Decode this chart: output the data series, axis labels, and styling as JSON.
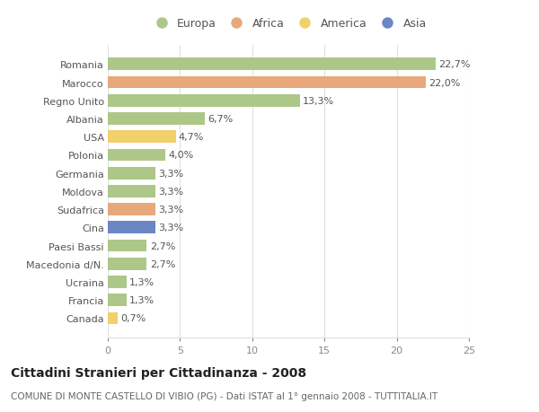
{
  "categories": [
    "Romania",
    "Marocco",
    "Regno Unito",
    "Albania",
    "USA",
    "Polonia",
    "Germania",
    "Moldova",
    "Sudafrica",
    "Cina",
    "Paesi Bassi",
    "Macedonia d/N.",
    "Ucraina",
    "Francia",
    "Canada"
  ],
  "values": [
    22.7,
    22.0,
    13.3,
    6.7,
    4.7,
    4.0,
    3.3,
    3.3,
    3.3,
    3.3,
    2.7,
    2.7,
    1.3,
    1.3,
    0.7
  ],
  "labels": [
    "22,7%",
    "22,0%",
    "13,3%",
    "6,7%",
    "4,7%",
    "4,0%",
    "3,3%",
    "3,3%",
    "3,3%",
    "3,3%",
    "2,7%",
    "2,7%",
    "1,3%",
    "1,3%",
    "0,7%"
  ],
  "continents": [
    "Europa",
    "Africa",
    "Europa",
    "Europa",
    "America",
    "Europa",
    "Europa",
    "Europa",
    "Africa",
    "Asia",
    "Europa",
    "Europa",
    "Europa",
    "Europa",
    "America"
  ],
  "colors": {
    "Europa": "#adc788",
    "Africa": "#e8a87c",
    "America": "#f2d06b",
    "Asia": "#6b86c4"
  },
  "xlim": [
    0,
    25
  ],
  "xticks": [
    0,
    5,
    10,
    15,
    20,
    25
  ],
  "title": "Cittadini Stranieri per Cittadinanza - 2008",
  "subtitle": "COMUNE DI MONTE CASTELLO DI VIBIO (PG) - Dati ISTAT al 1° gennaio 2008 - TUTTITALIA.IT",
  "background_color": "#ffffff",
  "grid_color": "#e0e0e0",
  "bar_height": 0.68,
  "title_fontsize": 10,
  "subtitle_fontsize": 7.5,
  "label_fontsize": 8,
  "tick_fontsize": 8,
  "legend_fontsize": 9
}
